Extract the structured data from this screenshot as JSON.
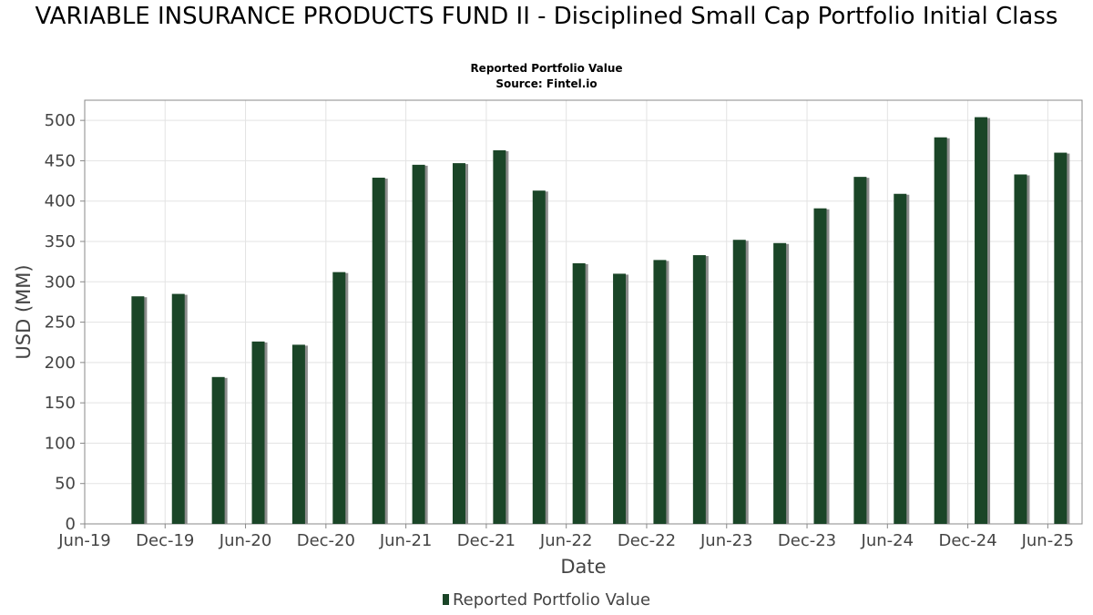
{
  "title": "VARIABLE INSURANCE PRODUCTS FUND II - Disciplined Small Cap Portfolio Initial Class",
  "subtitle": "Reported Portfolio Value",
  "source": "Source: Fintel.io",
  "colors": {
    "bar": "#1a4527",
    "shadow": "#8c8c8c",
    "grid": "#e3e3e3"
  },
  "chart_data": {
    "type": "bar",
    "xlabel": "Date",
    "ylabel": "USD (MM)",
    "ylim": [
      0,
      525
    ],
    "yticks": [
      0,
      50,
      100,
      150,
      200,
      250,
      300,
      350,
      400,
      450,
      500
    ],
    "xlim": [
      "2019-06-01",
      "2025-08-18"
    ],
    "xticks": [
      {
        "label": "Jun-19",
        "date": "2019-06-01"
      },
      {
        "label": "Dec-19",
        "date": "2019-12-01"
      },
      {
        "label": "Jun-20",
        "date": "2020-06-01"
      },
      {
        "label": "Dec-20",
        "date": "2020-12-01"
      },
      {
        "label": "Jun-21",
        "date": "2021-06-01"
      },
      {
        "label": "Dec-21",
        "date": "2021-12-01"
      },
      {
        "label": "Jun-22",
        "date": "2022-06-01"
      },
      {
        "label": "Dec-22",
        "date": "2022-12-01"
      },
      {
        "label": "Jun-23",
        "date": "2023-06-01"
      },
      {
        "label": "Dec-23",
        "date": "2023-12-01"
      },
      {
        "label": "Jun-24",
        "date": "2024-06-01"
      },
      {
        "label": "Dec-24",
        "date": "2024-12-01"
      },
      {
        "label": "Jun-25",
        "date": "2025-06-01"
      }
    ],
    "grid": true,
    "legend_position": "bottom",
    "series": [
      {
        "name": "Reported Portfolio Value",
        "points": [
          {
            "date": "2019-09-30",
            "value": 282
          },
          {
            "date": "2019-12-31",
            "value": 285
          },
          {
            "date": "2020-03-31",
            "value": 182
          },
          {
            "date": "2020-06-30",
            "value": 226
          },
          {
            "date": "2020-09-30",
            "value": 222
          },
          {
            "date": "2020-12-31",
            "value": 312
          },
          {
            "date": "2021-03-31",
            "value": 429
          },
          {
            "date": "2021-06-30",
            "value": 445
          },
          {
            "date": "2021-09-30",
            "value": 447
          },
          {
            "date": "2021-12-31",
            "value": 463
          },
          {
            "date": "2022-03-31",
            "value": 413
          },
          {
            "date": "2022-06-30",
            "value": 323
          },
          {
            "date": "2022-09-30",
            "value": 310
          },
          {
            "date": "2022-12-31",
            "value": 327
          },
          {
            "date": "2023-03-31",
            "value": 333
          },
          {
            "date": "2023-06-30",
            "value": 352
          },
          {
            "date": "2023-09-30",
            "value": 348
          },
          {
            "date": "2023-12-31",
            "value": 391
          },
          {
            "date": "2024-03-31",
            "value": 430
          },
          {
            "date": "2024-06-30",
            "value": 409
          },
          {
            "date": "2024-09-30",
            "value": 479
          },
          {
            "date": "2024-12-31",
            "value": 504
          },
          {
            "date": "2025-03-31",
            "value": 433
          },
          {
            "date": "2025-06-30",
            "value": 460
          }
        ]
      }
    ]
  }
}
